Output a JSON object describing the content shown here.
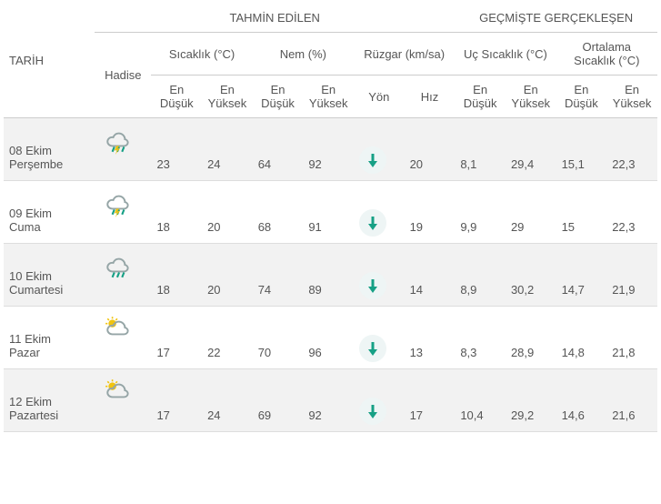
{
  "headers": {
    "date": "TARİH",
    "forecast": "TAHMİN EDİLEN",
    "past": "GEÇMİŞTE GERÇEKLEŞEN",
    "event": "Hadise",
    "temp": "Sıcaklık (°C)",
    "humidity": "Nem (%)",
    "wind": "Rüzgar (km/sa)",
    "ext_temp": "Uç Sıcaklık (°C)",
    "avg_temp": "Ortalama Sıcaklık (°C)",
    "low": "En Düşük",
    "high": "En Yüksek",
    "dir": "Yön",
    "speed": "Hız"
  },
  "colors": {
    "text": "#555555",
    "border": "#dddddd",
    "stripe": "#f2f2f2",
    "wind_bg": "#eef5f5",
    "wind_arrow": "#16a085",
    "cloud": "#95a5a6",
    "rain": "#16a085",
    "lightning": "#f1c40f",
    "sun": "#f1c40f"
  },
  "rows": [
    {
      "date_line1": "08 Ekim",
      "date_line2": "Perşembe",
      "icon": "thunderstorm",
      "temp_low": "23",
      "temp_high": "24",
      "hum_low": "64",
      "hum_high": "92",
      "wind_dir_deg": 180,
      "wind_speed": "20",
      "ext_low": "8,1",
      "ext_high": "29,4",
      "avg_low": "15,1",
      "avg_high": "22,3"
    },
    {
      "date_line1": "09 Ekim",
      "date_line2": "Cuma",
      "icon": "thunderstorm",
      "temp_low": "18",
      "temp_high": "20",
      "hum_low": "68",
      "hum_high": "91",
      "wind_dir_deg": 180,
      "wind_speed": "19",
      "ext_low": "9,9",
      "ext_high": "29",
      "avg_low": "15",
      "avg_high": "22,3"
    },
    {
      "date_line1": "10 Ekim",
      "date_line2": "Cumartesi",
      "icon": "rain",
      "temp_low": "18",
      "temp_high": "20",
      "hum_low": "74",
      "hum_high": "89",
      "wind_dir_deg": 180,
      "wind_speed": "14",
      "ext_low": "8,9",
      "ext_high": "30,2",
      "avg_low": "14,7",
      "avg_high": "21,9"
    },
    {
      "date_line1": "11 Ekim",
      "date_line2": "Pazar",
      "icon": "partly-sunny",
      "temp_low": "17",
      "temp_high": "22",
      "hum_low": "70",
      "hum_high": "96",
      "wind_dir_deg": 180,
      "wind_speed": "13",
      "ext_low": "8,3",
      "ext_high": "28,9",
      "avg_low": "14,8",
      "avg_high": "21,8"
    },
    {
      "date_line1": "12 Ekim",
      "date_line2": "Pazartesi",
      "icon": "partly-sunny",
      "temp_low": "17",
      "temp_high": "24",
      "hum_low": "69",
      "hum_high": "92",
      "wind_dir_deg": 180,
      "wind_speed": "17",
      "ext_low": "10,4",
      "ext_high": "29,2",
      "avg_low": "14,6",
      "avg_high": "21,6"
    }
  ]
}
